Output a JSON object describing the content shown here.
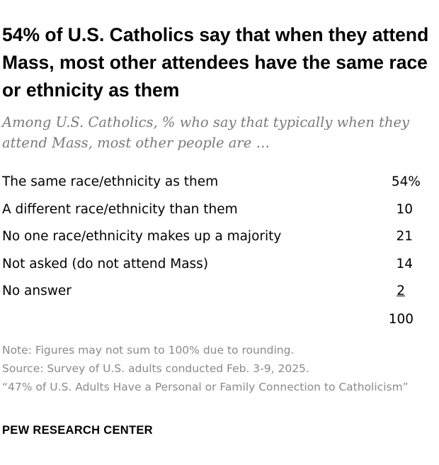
{
  "chart_data": {
    "type": "table",
    "title": "54% of U.S. Catholics say that when they attend Mass, most other attendees have the same race or ethnicity as them",
    "subtitle": "Among U.S. Catholics, % who say that typically when they attend Mass, most other people are …",
    "rows": [
      {
        "label": "The same race/ethnicity as them",
        "value": "54%"
      },
      {
        "label": "A different race/ethnicity than them",
        "value": "10"
      },
      {
        "label": "No one race/ethnicity makes up a majority",
        "value": "21"
      },
      {
        "label": "Not asked (do not attend Mass)",
        "value": "14"
      },
      {
        "label": "No answer",
        "value": "2"
      }
    ],
    "total": "100"
  },
  "notes": {
    "note": "Note: Figures may not sum to 100% due to rounding.",
    "source": "Source: Survey of U.S. adults conducted Feb. 3-9, 2025.",
    "report": "“47% of U.S. Adults Have a Personal or Family Connection to Catholicism”"
  },
  "brand": "PEW RESEARCH CENTER"
}
